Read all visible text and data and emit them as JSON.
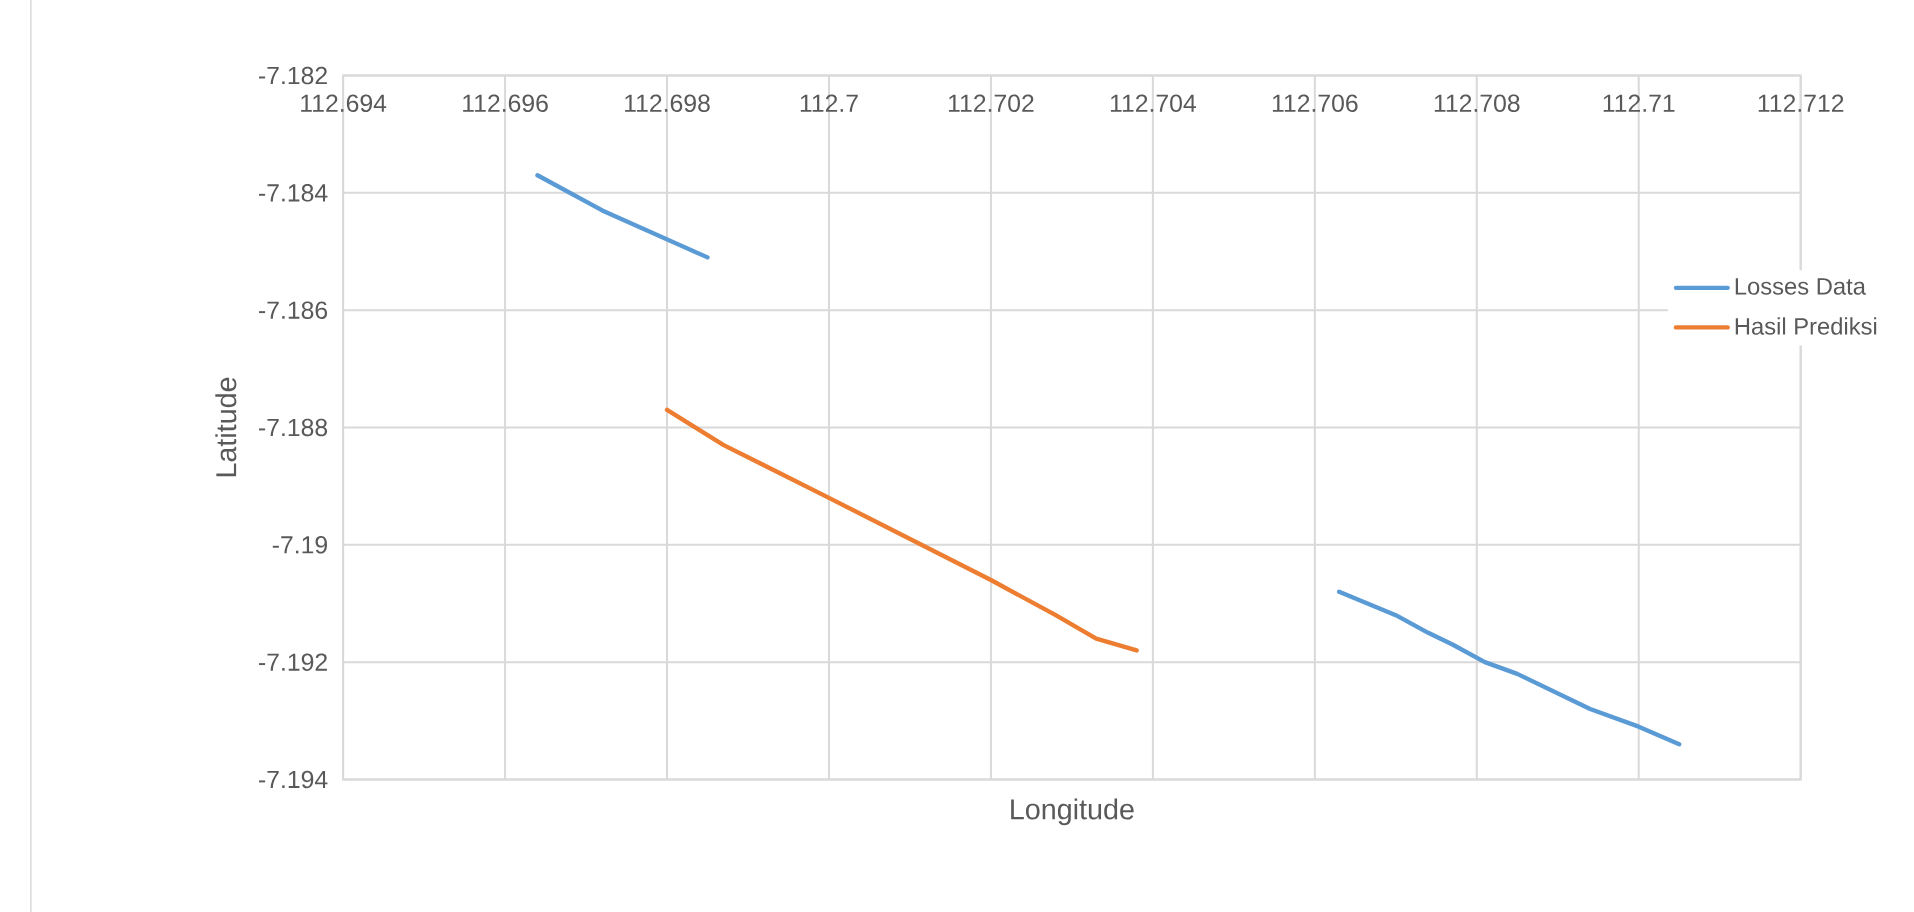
{
  "chart_data": {
    "type": "line",
    "xlabel": "Longitude",
    "ylabel": "Latitude",
    "xlim": [
      112.694,
      112.712
    ],
    "xticks": [
      112.694,
      112.696,
      112.698,
      112.7,
      112.702,
      112.704,
      112.706,
      112.708,
      112.71,
      112.712
    ],
    "ylim": [
      -7.194,
      -7.182
    ],
    "yticks": [
      -7.194,
      -7.192,
      -7.19,
      -7.188,
      -7.186,
      -7.184,
      -7.182
    ],
    "grid": true,
    "legend": "right",
    "marker": "none",
    "line_style": "solid",
    "series": [
      {
        "name": "Losses Data",
        "color": "#5b9bd5",
        "x": [
          112.6964,
          112.6972,
          112.6985,
          null,
          112.7063,
          112.707,
          112.7074,
          112.7077,
          112.7081,
          112.7085,
          112.7094,
          112.71,
          112.7105
        ],
        "values": [
          -7.1837,
          -7.1843,
          -7.1851,
          null,
          -7.1908,
          -7.1912,
          -7.1915,
          -7.1917,
          -7.192,
          -7.1922,
          -7.1928,
          -7.1931,
          -7.1934
        ]
      },
      {
        "name": "Hasil Prediksi",
        "color": "#ed7d31",
        "x": [
          112.698,
          112.6987,
          112.7,
          112.702,
          112.7028,
          112.7033,
          112.7038
        ],
        "values": [
          -7.1877,
          -7.1883,
          -7.1892,
          -7.1906,
          -7.1912,
          -7.1916,
          -7.1918
        ]
      }
    ]
  }
}
